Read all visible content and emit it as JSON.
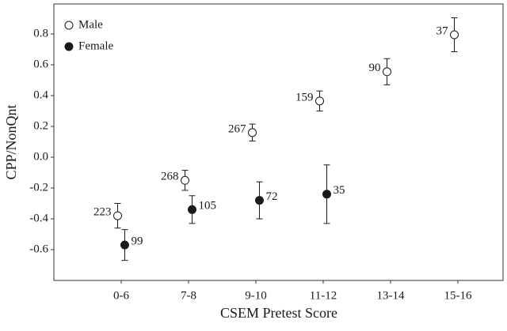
{
  "chart_data": {
    "type": "dot_errorbar",
    "x_label": "CSEM Pretest Score",
    "y_label": "CPP/NonQnt",
    "categories": [
      "0-6",
      "7-8",
      "9-10",
      "11-12",
      "13-14",
      "15-16"
    ],
    "series": [
      {
        "name": "Male",
        "color": "#ffffff",
        "values": [
          -0.38,
          -0.15,
          0.16,
          0.365,
          0.555,
          0.795
        ],
        "errors": [
          0.08,
          0.065,
          0.055,
          0.065,
          0.085,
          0.11
        ],
        "counts": [
          "223",
          "268",
          "267",
          "159",
          "90",
          "37"
        ]
      },
      {
        "name": "Female",
        "color": "#1a1a1a",
        "values": [
          -0.57,
          -0.34,
          -0.28,
          -0.24,
          null,
          null
        ],
        "errors": [
          0.1,
          0.09,
          0.12,
          0.19,
          null,
          null
        ],
        "counts": [
          "99",
          "105",
          "72",
          "35",
          null,
          null
        ]
      }
    ],
    "ylim": [
      -0.8,
      0.995
    ],
    "yticks": [
      -0.6,
      -0.4,
      -0.2,
      {
        "value": 0,
        "label": "0.0"
      },
      0.2,
      0.4,
      0.6,
      0.8
    ],
    "legend": "top-left",
    "grid": false
  }
}
